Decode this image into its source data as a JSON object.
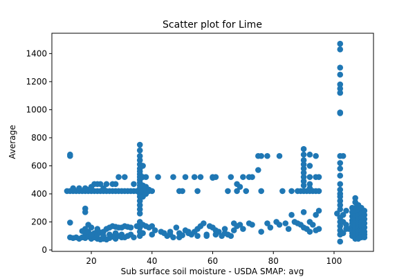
{
  "chart_data": {
    "type": "scatter",
    "title": "Scatter plot for Lime",
    "xlabel": "Sub surface soil moisture - USDA SMAP: avg",
    "ylabel": "Average",
    "xlim": [
      7,
      113
    ],
    "ylim": [
      -10,
      1545
    ],
    "xticks": [
      20,
      40,
      60,
      80,
      100
    ],
    "yticks": [
      0,
      200,
      400,
      600,
      800,
      1000,
      1200,
      1400
    ],
    "grid": false,
    "marker_color": "#1f77b4",
    "series": [
      {
        "points": [
          [
            12,
            420
          ],
          [
            13,
            420
          ],
          [
            14,
            420
          ],
          [
            15,
            420
          ],
          [
            16,
            420
          ],
          [
            17,
            420
          ],
          [
            18,
            420
          ],
          [
            19,
            420
          ],
          [
            20,
            420
          ],
          [
            21,
            420
          ],
          [
            22,
            420
          ],
          [
            23,
            420
          ],
          [
            24,
            420
          ],
          [
            25,
            420
          ],
          [
            26,
            420
          ],
          [
            27,
            420
          ],
          [
            28,
            420
          ],
          [
            29,
            420
          ],
          [
            30,
            420
          ],
          [
            31,
            420
          ],
          [
            32,
            420
          ],
          [
            33,
            420
          ],
          [
            34,
            420
          ],
          [
            35,
            420
          ],
          [
            36,
            420
          ],
          [
            37,
            420
          ],
          [
            38,
            420
          ],
          [
            39,
            420
          ],
          [
            40,
            420
          ],
          [
            13,
            670
          ],
          [
            13,
            680
          ],
          [
            14,
            440
          ],
          [
            16,
            440
          ],
          [
            18,
            440
          ],
          [
            19,
            430
          ],
          [
            20,
            450
          ],
          [
            21,
            470
          ],
          [
            22,
            470
          ],
          [
            23,
            470
          ],
          [
            24,
            440
          ],
          [
            25,
            470
          ],
          [
            27,
            470
          ],
          [
            28,
            470
          ],
          [
            29,
            520
          ],
          [
            31,
            520
          ],
          [
            34,
            470
          ],
          [
            18,
            295
          ],
          [
            18,
            270
          ],
          [
            13,
            195
          ],
          [
            13,
            90
          ],
          [
            14,
            85
          ],
          [
            15,
            90
          ],
          [
            16,
            80
          ],
          [
            17,
            90
          ],
          [
            18,
            85
          ],
          [
            19,
            95
          ],
          [
            20,
            80
          ],
          [
            21,
            90
          ],
          [
            22,
            80
          ],
          [
            23,
            75
          ],
          [
            24,
            80
          ],
          [
            25,
            75
          ],
          [
            26,
            85
          ],
          [
            27,
            95
          ],
          [
            28,
            80
          ],
          [
            29,
            100
          ],
          [
            30,
            90
          ],
          [
            31,
            90
          ],
          [
            32,
            100
          ],
          [
            33,
            110
          ],
          [
            34,
            90
          ],
          [
            17,
            135
          ],
          [
            18,
            150
          ],
          [
            19,
            180
          ],
          [
            20,
            160
          ],
          [
            21,
            120
          ],
          [
            22,
            110
          ],
          [
            23,
            125
          ],
          [
            24,
            130
          ],
          [
            25,
            150
          ],
          [
            26,
            160
          ],
          [
            27,
            170
          ],
          [
            28,
            165
          ],
          [
            29,
            160
          ],
          [
            30,
            160
          ],
          [
            31,
            170
          ],
          [
            32,
            165
          ],
          [
            33,
            160
          ],
          [
            35,
            170
          ],
          [
            18,
            120
          ],
          [
            19,
            130
          ],
          [
            20,
            110
          ],
          [
            22,
            150
          ],
          [
            24,
            100
          ],
          [
            26,
            110
          ],
          [
            28,
            120
          ],
          [
            30,
            110
          ],
          [
            36,
            750
          ],
          [
            36,
            710
          ],
          [
            36,
            670
          ],
          [
            36,
            640
          ],
          [
            36,
            610
          ],
          [
            36,
            580
          ],
          [
            36,
            560
          ],
          [
            36,
            540
          ],
          [
            36,
            520
          ],
          [
            36,
            500
          ],
          [
            36,
            480
          ],
          [
            36,
            460
          ],
          [
            36,
            440
          ],
          [
            36,
            400
          ],
          [
            36,
            380
          ],
          [
            36,
            350
          ],
          [
            36,
            320
          ],
          [
            36,
            290
          ],
          [
            36,
            260
          ],
          [
            36,
            200
          ],
          [
            36,
            160
          ],
          [
            36,
            130
          ],
          [
            36,
            100
          ],
          [
            37,
            600
          ],
          [
            37,
            520
          ],
          [
            37,
            460
          ],
          [
            37,
            420
          ],
          [
            37,
            380
          ],
          [
            37,
            180
          ],
          [
            37,
            120
          ],
          [
            38,
            520
          ],
          [
            38,
            450
          ],
          [
            38,
            430
          ],
          [
            38,
            400
          ],
          [
            39,
            430
          ],
          [
            38,
            170
          ],
          [
            39,
            160
          ],
          [
            40,
            170
          ],
          [
            40,
            110
          ],
          [
            42,
            520
          ],
          [
            47,
            520
          ],
          [
            49,
            420
          ],
          [
            50,
            420
          ],
          [
            51,
            520
          ],
          [
            54,
            520
          ],
          [
            55,
            420
          ],
          [
            56,
            520
          ],
          [
            60,
            520
          ],
          [
            60,
            515
          ],
          [
            61,
            520
          ],
          [
            65,
            420
          ],
          [
            66,
            520
          ],
          [
            68,
            420
          ],
          [
            68,
            470
          ],
          [
            69,
            450
          ],
          [
            70,
            520
          ],
          [
            71,
            420
          ],
          [
            72,
            520
          ],
          [
            73,
            520
          ],
          [
            75,
            570
          ],
          [
            75,
            670
          ],
          [
            76,
            670
          ],
          [
            76,
            420
          ],
          [
            78,
            670
          ],
          [
            82,
            670
          ],
          [
            83,
            420
          ],
          [
            44,
            120
          ],
          [
            45,
            100
          ],
          [
            46,
            110
          ],
          [
            47,
            90
          ],
          [
            48,
            160
          ],
          [
            49,
            120
          ],
          [
            50,
            105
          ],
          [
            51,
            140
          ],
          [
            52,
            120
          ],
          [
            53,
            110
          ],
          [
            54,
            130
          ],
          [
            55,
            150
          ],
          [
            56,
            170
          ],
          [
            57,
            190
          ],
          [
            58,
            110
          ],
          [
            59,
            170
          ],
          [
            60,
            160
          ],
          [
            61,
            140
          ],
          [
            62,
            130
          ],
          [
            63,
            100
          ],
          [
            64,
            120
          ],
          [
            65,
            110
          ],
          [
            66,
            100
          ],
          [
            67,
            190
          ],
          [
            68,
            170
          ],
          [
            69,
            180
          ],
          [
            70,
            150
          ],
          [
            72,
            190
          ],
          [
            73,
            180
          ],
          [
            76,
            130
          ],
          [
            78,
            190
          ],
          [
            79,
            160
          ],
          [
            81,
            200
          ],
          [
            82,
            180
          ],
          [
            84,
            190
          ],
          [
            85,
            150
          ],
          [
            86,
            250
          ],
          [
            87,
            200
          ],
          [
            88,
            190
          ],
          [
            89,
            180
          ],
          [
            41,
            140
          ],
          [
            43,
            130
          ],
          [
            46,
            130
          ],
          [
            49,
            90
          ],
          [
            52,
            130
          ],
          [
            55,
            100
          ],
          [
            58,
            100
          ],
          [
            61,
            110
          ],
          [
            64,
            150
          ],
          [
            67,
            140
          ],
          [
            86,
            420
          ],
          [
            88,
            420
          ],
          [
            89,
            420
          ],
          [
            90,
            420
          ],
          [
            91,
            420
          ],
          [
            92,
            420
          ],
          [
            93,
            420
          ],
          [
            94,
            420
          ],
          [
            95,
            420
          ],
          [
            90,
            720
          ],
          [
            90,
            680
          ],
          [
            90,
            640
          ],
          [
            90,
            610
          ],
          [
            90,
            580
          ],
          [
            90,
            550
          ],
          [
            90,
            520
          ],
          [
            90,
            490
          ],
          [
            90,
            460
          ],
          [
            92,
            680
          ],
          [
            92,
            600
          ],
          [
            92,
            520
          ],
          [
            92,
            470
          ],
          [
            92,
            440
          ],
          [
            94,
            670
          ],
          [
            94,
            520
          ],
          [
            95,
            520
          ],
          [
            95,
            280
          ],
          [
            94,
            250
          ],
          [
            90,
            270
          ],
          [
            92,
            200
          ],
          [
            93,
            180
          ],
          [
            90,
            160
          ],
          [
            91,
            150
          ],
          [
            94,
            140
          ],
          [
            95,
            150
          ],
          [
            92,
            130
          ],
          [
            102,
            1470
          ],
          [
            102,
            1430
          ],
          [
            102,
            1300
          ],
          [
            102,
            1250
          ],
          [
            102,
            1180
          ],
          [
            102,
            1150
          ],
          [
            102,
            1120
          ],
          [
            102,
            980
          ],
          [
            102,
            975
          ],
          [
            102,
            670
          ],
          [
            103,
            670
          ],
          [
            102,
            620
          ],
          [
            102,
            580
          ],
          [
            102,
            530
          ],
          [
            102,
            470
          ],
          [
            102,
            430
          ],
          [
            102,
            400
          ],
          [
            102,
            380
          ],
          [
            102,
            350
          ],
          [
            102,
            320
          ],
          [
            102,
            290
          ],
          [
            101,
            260
          ],
          [
            102,
            230
          ],
          [
            102,
            200
          ],
          [
            102,
            170
          ],
          [
            102,
            140
          ],
          [
            102,
            110
          ],
          [
            102,
            60
          ],
          [
            103,
            250
          ],
          [
            104,
            280
          ],
          [
            103,
            200
          ],
          [
            104,
            180
          ],
          [
            104,
            150
          ],
          [
            103,
            120
          ],
          [
            105,
            150
          ],
          [
            106,
            170
          ],
          [
            106,
            300
          ],
          [
            106,
            270
          ],
          [
            106,
            240
          ],
          [
            106,
            210
          ],
          [
            106,
            190
          ],
          [
            106,
            160
          ],
          [
            106,
            140
          ],
          [
            106,
            120
          ],
          [
            106,
            100
          ],
          [
            107,
            370
          ],
          [
            107,
            340
          ],
          [
            107,
            300
          ],
          [
            107,
            270
          ],
          [
            107,
            240
          ],
          [
            107,
            210
          ],
          [
            107,
            180
          ],
          [
            107,
            150
          ],
          [
            107,
            120
          ],
          [
            107,
            90
          ],
          [
            107,
            80
          ],
          [
            108,
            320
          ],
          [
            108,
            280
          ],
          [
            108,
            250
          ],
          [
            108,
            220
          ],
          [
            108,
            190
          ],
          [
            108,
            160
          ],
          [
            108,
            130
          ],
          [
            108,
            100
          ],
          [
            108,
            80
          ],
          [
            109,
            300
          ],
          [
            109,
            260
          ],
          [
            109,
            230
          ],
          [
            109,
            200
          ],
          [
            109,
            170
          ],
          [
            109,
            140
          ],
          [
            109,
            110
          ],
          [
            109,
            90
          ],
          [
            110,
            280
          ],
          [
            110,
            250
          ],
          [
            110,
            220
          ],
          [
            110,
            190
          ],
          [
            110,
            160
          ],
          [
            110,
            130
          ],
          [
            110,
            110
          ],
          [
            110,
            90
          ]
        ]
      }
    ]
  }
}
